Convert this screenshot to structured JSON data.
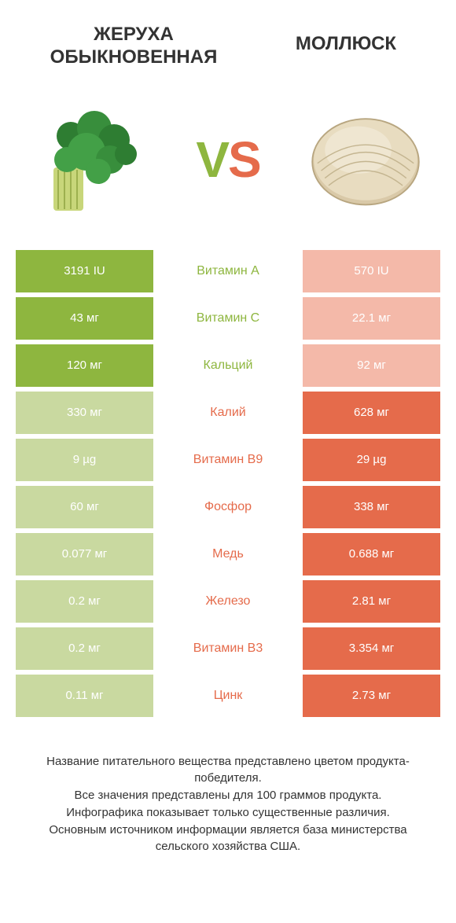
{
  "colors": {
    "left": "#8eb63f",
    "right": "#e56b4b",
    "left_dim": "#c9d9a0",
    "right_dim": "#f4b9a9",
    "text": "#333333",
    "bg": "#ffffff"
  },
  "header": {
    "left_title": "ЖЕРУХА ОБЫКНОВЕННАЯ",
    "right_title": "МОЛЛЮСК",
    "vs_v": "V",
    "vs_s": "S"
  },
  "rows": [
    {
      "label": "Витамин A",
      "left": "3191 IU",
      "right": "570 IU",
      "winner": "left"
    },
    {
      "label": "Витамин C",
      "left": "43 мг",
      "right": "22.1 мг",
      "winner": "left"
    },
    {
      "label": "Кальций",
      "left": "120 мг",
      "right": "92 мг",
      "winner": "left"
    },
    {
      "label": "Калий",
      "left": "330 мг",
      "right": "628 мг",
      "winner": "right"
    },
    {
      "label": "Витамин B9",
      "left": "9 µg",
      "right": "29 µg",
      "winner": "right"
    },
    {
      "label": "Фосфор",
      "left": "60 мг",
      "right": "338 мг",
      "winner": "right"
    },
    {
      "label": "Медь",
      "left": "0.077 мг",
      "right": "0.688 мг",
      "winner": "right"
    },
    {
      "label": "Железо",
      "left": "0.2 мг",
      "right": "2.81 мг",
      "winner": "right"
    },
    {
      "label": "Витамин B3",
      "left": "0.2 мг",
      "right": "3.354 мг",
      "winner": "right"
    },
    {
      "label": "Цинк",
      "left": "0.11 мг",
      "right": "2.73 мг",
      "winner": "right"
    }
  ],
  "footer": {
    "line1": "Название питательного вещества представлено цветом продукта-победителя.",
    "line2": "Все значения представлены для 100 граммов продукта.",
    "line3": "Инфографика показывает только существенные различия.",
    "line4": "Основным источником информации является база министерства сельского хозяйства США."
  }
}
